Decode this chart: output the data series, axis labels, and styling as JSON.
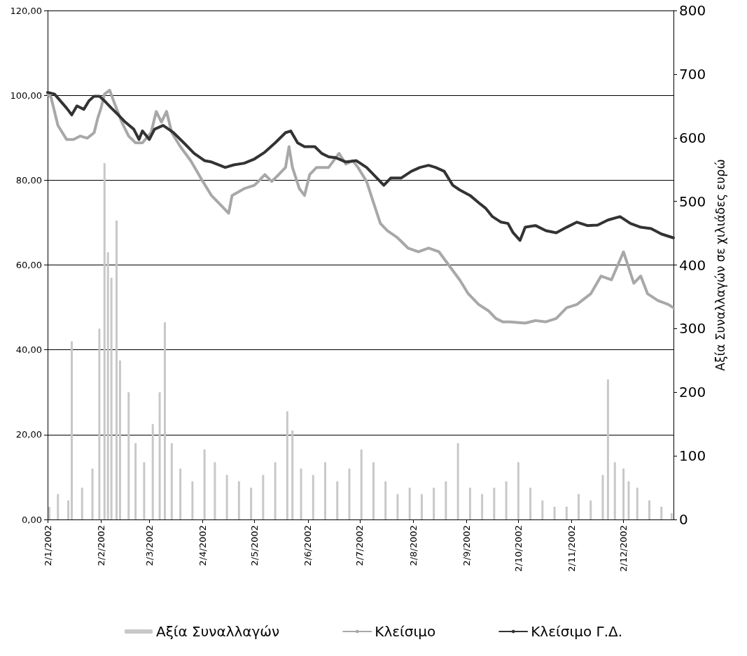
{
  "chart_data": {
    "type": "line",
    "y2label": "Αξία Συναλλαγών σε χιλιάδες ευρώ",
    "xlim": [
      "2002-01-02",
      "2002-12-31"
    ],
    "xticks": [
      {
        "value": "2002-01-02",
        "label": "2/1/2002"
      },
      {
        "value": "2002-02-02",
        "label": "2/2/2002"
      },
      {
        "value": "2002-03-02",
        "label": "2/3/2002"
      },
      {
        "value": "2002-04-02",
        "label": "2/4/2002"
      },
      {
        "value": "2002-05-02",
        "label": "2/5/2002"
      },
      {
        "value": "2002-06-02",
        "label": "2/6/2002"
      },
      {
        "value": "2002-07-02",
        "label": "2/7/2002"
      },
      {
        "value": "2002-08-02",
        "label": "2/8/2002"
      },
      {
        "value": "2002-09-02",
        "label": "2/9/2002"
      },
      {
        "value": "2002-10-02",
        "label": "2/10/2002"
      },
      {
        "value": "2002-11-02",
        "label": "2/11/2002"
      },
      {
        "value": "2002-12-02",
        "label": "2/12/2002"
      }
    ],
    "ylim": [
      0,
      120
    ],
    "yticks": [
      {
        "value": 0,
        "label": "0,00"
      },
      {
        "value": 20,
        "label": "20,00"
      },
      {
        "value": 40,
        "label": "40,00"
      },
      {
        "value": 60,
        "label": "60,00"
      },
      {
        "value": 80,
        "label": "80,00"
      },
      {
        "value": 100,
        "label": "100,00"
      },
      {
        "value": 120,
        "label": "120,00"
      }
    ],
    "y2lim": [
      0,
      800
    ],
    "y2ticks": [
      0,
      100,
      200,
      300,
      400,
      500,
      600,
      700,
      800
    ],
    "grid": "y",
    "legend": "bottom",
    "marker": "none",
    "line_style": "solid",
    "series": [
      {
        "name": "Αξία Συναλλαγών",
        "type": "bar",
        "axis": "y2",
        "color": "#c8c8c8",
        "x": [
          "2002-01-03",
          "2002-01-08",
          "2002-01-14",
          "2002-01-16",
          "2002-01-22",
          "2002-01-28",
          "2002-02-01",
          "2002-02-04",
          "2002-02-06",
          "2002-02-08",
          "2002-02-11",
          "2002-02-13",
          "2002-02-18",
          "2002-02-22",
          "2002-02-27",
          "2002-03-04",
          "2002-03-08",
          "2002-03-11",
          "2002-03-15",
          "2002-03-20",
          "2002-03-27",
          "2002-04-03",
          "2002-04-09",
          "2002-04-16",
          "2002-04-23",
          "2002-04-30",
          "2002-05-07",
          "2002-05-14",
          "2002-05-21",
          "2002-05-24",
          "2002-05-29",
          "2002-06-05",
          "2002-06-12",
          "2002-06-19",
          "2002-06-26",
          "2002-07-03",
          "2002-07-10",
          "2002-07-17",
          "2002-07-24",
          "2002-07-31",
          "2002-08-07",
          "2002-08-14",
          "2002-08-21",
          "2002-08-28",
          "2002-09-04",
          "2002-09-11",
          "2002-09-18",
          "2002-09-25",
          "2002-10-02",
          "2002-10-09",
          "2002-10-16",
          "2002-10-23",
          "2002-10-30",
          "2002-11-06",
          "2002-11-13",
          "2002-11-20",
          "2002-11-23",
          "2002-11-27",
          "2002-12-02",
          "2002-12-05",
          "2002-12-10",
          "2002-12-17",
          "2002-12-24",
          "2002-12-30"
        ],
        "values": [
          20,
          40,
          30,
          280,
          50,
          80,
          300,
          560,
          420,
          380,
          470,
          250,
          200,
          120,
          90,
          150,
          200,
          310,
          120,
          80,
          60,
          110,
          90,
          70,
          60,
          50,
          70,
          90,
          170,
          140,
          80,
          70,
          90,
          60,
          80,
          110,
          90,
          60,
          40,
          50,
          40,
          50,
          60,
          120,
          50,
          40,
          50,
          60,
          90,
          50,
          30,
          20,
          20,
          40,
          30,
          70,
          220,
          90,
          80,
          60,
          50,
          30,
          20,
          10
        ]
      },
      {
        "name": "Κλείσιμο",
        "color": "#a8a8a8",
        "x": [
          "2002-01-02",
          "2002-01-04",
          "2002-01-08",
          "2002-01-13",
          "2002-01-17",
          "2002-01-21",
          "2002-01-25",
          "2002-01-29",
          "2002-01-31",
          "2002-02-02",
          "2002-02-04",
          "2002-02-07",
          "2002-02-10",
          "2002-02-14",
          "2002-02-18",
          "2002-02-22",
          "2002-02-26",
          "2002-03-03",
          "2002-03-06",
          "2002-03-09",
          "2002-03-12",
          "2002-03-15",
          "2002-03-20",
          "2002-03-26",
          "2002-04-02",
          "2002-04-07",
          "2002-04-13",
          "2002-04-17",
          "2002-04-19",
          "2002-04-26",
          "2002-05-02",
          "2002-05-08",
          "2002-05-12",
          "2002-05-16",
          "2002-05-20",
          "2002-05-22",
          "2002-05-24",
          "2002-05-28",
          "2002-05-31",
          "2002-06-03",
          "2002-06-07",
          "2002-06-14",
          "2002-06-20",
          "2002-06-24",
          "2002-06-28",
          "2002-07-01",
          "2002-07-06",
          "2002-07-10",
          "2002-07-14",
          "2002-07-18",
          "2002-07-24",
          "2002-07-30",
          "2002-08-05",
          "2002-08-11",
          "2002-08-17",
          "2002-08-23",
          "2002-08-29",
          "2002-09-03",
          "2002-09-09",
          "2002-09-15",
          "2002-09-19",
          "2002-09-23",
          "2002-09-27",
          "2002-10-06",
          "2002-10-12",
          "2002-10-18",
          "2002-10-24",
          "2002-10-30",
          "2002-11-05",
          "2002-11-13",
          "2002-11-19",
          "2002-11-25",
          "2002-12-02",
          "2002-12-08",
          "2002-12-12",
          "2002-12-16",
          "2002-12-22",
          "2002-12-28",
          "2002-12-31"
        ],
        "values": [
          100.3,
          99.5,
          92.9,
          89.6,
          89.6,
          90.4,
          89.9,
          91.2,
          94.5,
          97,
          100.3,
          101.2,
          97.9,
          93.7,
          90.4,
          88.8,
          88.8,
          91.2,
          96.2,
          93.7,
          96.2,
          91.2,
          87.9,
          84.6,
          79.7,
          76.4,
          73.9,
          72.2,
          76.4,
          78,
          78.8,
          81.3,
          79.7,
          81.3,
          83,
          87.9,
          83,
          78,
          76.4,
          81.3,
          83,
          83,
          86.3,
          83.8,
          84.6,
          83,
          79.7,
          74.7,
          69.8,
          68.1,
          66.4,
          64,
          63.1,
          64,
          63.1,
          59.8,
          56.5,
          53.2,
          50.7,
          49.1,
          47.4,
          46.6,
          46.6,
          46.3,
          46.9,
          46.6,
          47.4,
          49.9,
          50.7,
          53.2,
          57.4,
          56.5,
          63.1,
          55.7,
          57.4,
          53.2,
          51.6,
          50.7,
          49.9
        ]
      },
      {
        "name": "Κλείσιμο Γ.Δ.",
        "color": "#333333",
        "x": [
          "2002-01-02",
          "2002-01-06",
          "2002-01-13",
          "2002-01-16",
          "2002-01-19",
          "2002-01-23",
          "2002-01-26",
          "2002-01-29",
          "2002-02-01",
          "2002-02-04",
          "2002-02-08",
          "2002-02-12",
          "2002-02-16",
          "2002-02-21",
          "2002-02-24",
          "2002-02-26",
          "2002-03-02",
          "2002-03-05",
          "2002-03-10",
          "2002-03-16",
          "2002-03-22",
          "2002-03-28",
          "2002-04-03",
          "2002-04-07",
          "2002-04-15",
          "2002-04-20",
          "2002-04-26",
          "2002-05-02",
          "2002-05-08",
          "2002-05-14",
          "2002-05-20",
          "2002-05-23",
          "2002-05-27",
          "2002-05-31",
          "2002-06-06",
          "2002-06-10",
          "2002-06-14",
          "2002-06-18",
          "2002-06-24",
          "2002-06-30",
          "2002-07-06",
          "2002-07-12",
          "2002-07-16",
          "2002-07-20",
          "2002-07-26",
          "2002-08-01",
          "2002-08-06",
          "2002-08-11",
          "2002-08-15",
          "2002-08-20",
          "2002-08-25",
          "2002-08-29",
          "2002-09-04",
          "2002-09-09",
          "2002-09-13",
          "2002-09-17",
          "2002-09-22",
          "2002-09-26",
          "2002-09-29",
          "2002-10-03",
          "2002-10-06",
          "2002-10-12",
          "2002-10-18",
          "2002-10-24",
          "2002-10-30",
          "2002-11-05",
          "2002-11-11",
          "2002-11-17",
          "2002-11-23",
          "2002-11-30",
          "2002-12-06",
          "2002-12-12",
          "2002-12-18",
          "2002-12-24",
          "2002-12-31"
        ],
        "values": [
          100.7,
          100.3,
          97,
          95.4,
          97.5,
          96.7,
          98.7,
          99.8,
          99.8,
          98.7,
          97,
          95.4,
          93.7,
          92,
          89.6,
          91.6,
          89.6,
          92,
          92.9,
          91.2,
          88.8,
          86.3,
          84.6,
          84.3,
          83,
          83.6,
          84,
          85,
          86.6,
          88.8,
          91.2,
          91.6,
          88.8,
          87.9,
          87.9,
          86.3,
          85.5,
          85.3,
          84.3,
          84.6,
          83,
          80.5,
          78.8,
          80.5,
          80.5,
          82.1,
          83,
          83.5,
          83,
          82.1,
          78.8,
          77.7,
          76.4,
          74.7,
          73.4,
          71.4,
          70.1,
          69.8,
          67.6,
          65.8,
          68.9,
          69.3,
          68.1,
          67.6,
          68.9,
          70.1,
          69.3,
          69.4,
          70.6,
          71.4,
          69.8,
          68.9,
          68.6,
          67.3,
          66.4
        ]
      }
    ]
  }
}
